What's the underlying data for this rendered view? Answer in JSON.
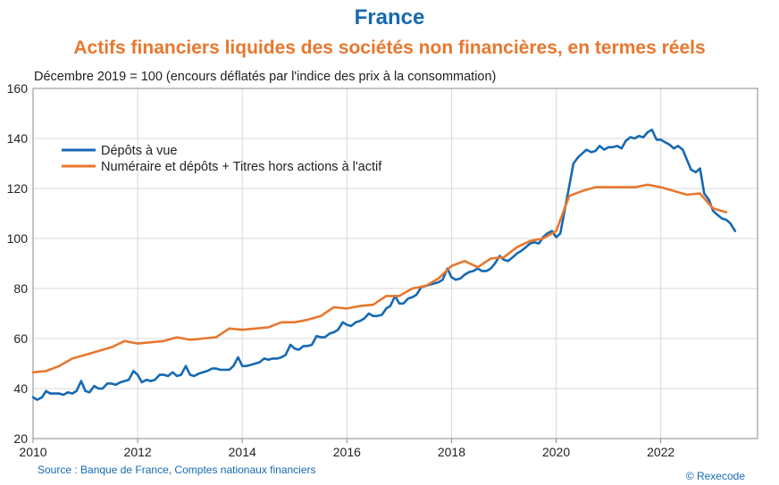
{
  "header": {
    "title": "France",
    "subtitle": "Actifs financiers liquides des sociétés non financières, en termes réels",
    "note": "Décembre 2019 = 100 (encours déflatés par l'indice des prix à la consommation)"
  },
  "footer": {
    "source": "Source : Banque de France, Comptes nationaux financiers",
    "copyright": "© Rexecode"
  },
  "colors": {
    "blue": "#1569b3",
    "orange": "#e8772e",
    "grid": "#d9d9d9",
    "axis": "#888888"
  },
  "chart_data": {
    "type": "line",
    "title": "Actifs financiers liquides des sociétés non financières, en termes réels",
    "ylabel": "Décembre 2019 = 100 (encours déflatés par l'indice des prix à la consommation)",
    "xlim": [
      2010,
      2023.85
    ],
    "ylim": [
      20,
      160
    ],
    "x_ticks": [
      2010,
      2012,
      2014,
      2016,
      2018,
      2020,
      2022
    ],
    "y_ticks": [
      20,
      40,
      60,
      80,
      100,
      120,
      140,
      160
    ],
    "grid": true,
    "legend_position": "top-left",
    "series": [
      {
        "name": "Dépôts à vue",
        "color": "#1569b3",
        "points": [
          [
            2010.0,
            36.5
          ],
          [
            2010.08,
            35.5
          ],
          [
            2010.17,
            36.5
          ],
          [
            2010.25,
            39
          ],
          [
            2010.33,
            38
          ],
          [
            2010.42,
            38
          ],
          [
            2010.5,
            38
          ],
          [
            2010.58,
            37.5
          ],
          [
            2010.67,
            38.5
          ],
          [
            2010.75,
            38
          ],
          [
            2010.83,
            39
          ],
          [
            2010.92,
            43
          ],
          [
            2011.0,
            39
          ],
          [
            2011.08,
            38.5
          ],
          [
            2011.17,
            41
          ],
          [
            2011.25,
            40
          ],
          [
            2011.33,
            40
          ],
          [
            2011.42,
            42
          ],
          [
            2011.5,
            42
          ],
          [
            2011.58,
            41.5
          ],
          [
            2011.67,
            42.5
          ],
          [
            2011.75,
            43
          ],
          [
            2011.83,
            43.5
          ],
          [
            2011.92,
            47
          ],
          [
            2012.0,
            45.5
          ],
          [
            2012.08,
            42.5
          ],
          [
            2012.17,
            43.5
          ],
          [
            2012.25,
            43
          ],
          [
            2012.33,
            43.5
          ],
          [
            2012.42,
            45.5
          ],
          [
            2012.5,
            45.5
          ],
          [
            2012.58,
            45
          ],
          [
            2012.67,
            46.5
          ],
          [
            2012.75,
            45
          ],
          [
            2012.83,
            45.5
          ],
          [
            2012.92,
            49
          ],
          [
            2013.0,
            45.5
          ],
          [
            2013.08,
            45
          ],
          [
            2013.17,
            46
          ],
          [
            2013.25,
            46.5
          ],
          [
            2013.33,
            47
          ],
          [
            2013.42,
            48
          ],
          [
            2013.5,
            48
          ],
          [
            2013.58,
            47.5
          ],
          [
            2013.67,
            47.5
          ],
          [
            2013.75,
            47.5
          ],
          [
            2013.83,
            49
          ],
          [
            2013.92,
            52.5
          ],
          [
            2014.0,
            49
          ],
          [
            2014.08,
            49
          ],
          [
            2014.17,
            49.5
          ],
          [
            2014.25,
            50
          ],
          [
            2014.33,
            50.5
          ],
          [
            2014.42,
            52
          ],
          [
            2014.5,
            51.5
          ],
          [
            2014.58,
            52
          ],
          [
            2014.67,
            52
          ],
          [
            2014.75,
            52.5
          ],
          [
            2014.83,
            53.5
          ],
          [
            2014.92,
            57.5
          ],
          [
            2015.0,
            56
          ],
          [
            2015.08,
            55.5
          ],
          [
            2015.17,
            57
          ],
          [
            2015.25,
            57
          ],
          [
            2015.33,
            57.5
          ],
          [
            2015.42,
            61
          ],
          [
            2015.5,
            60.5
          ],
          [
            2015.58,
            60.5
          ],
          [
            2015.67,
            62
          ],
          [
            2015.75,
            62.5
          ],
          [
            2015.83,
            63.5
          ],
          [
            2015.92,
            66.5
          ],
          [
            2016.0,
            65.5
          ],
          [
            2016.08,
            65
          ],
          [
            2016.17,
            66.5
          ],
          [
            2016.25,
            67
          ],
          [
            2016.33,
            68
          ],
          [
            2016.42,
            70
          ],
          [
            2016.5,
            69
          ],
          [
            2016.58,
            69
          ],
          [
            2016.67,
            69.5
          ],
          [
            2016.75,
            72
          ],
          [
            2016.83,
            73
          ],
          [
            2016.92,
            77
          ],
          [
            2017.0,
            74
          ],
          [
            2017.08,
            74
          ],
          [
            2017.17,
            76
          ],
          [
            2017.25,
            76.5
          ],
          [
            2017.33,
            77.5
          ],
          [
            2017.42,
            80.5
          ],
          [
            2017.5,
            81
          ],
          [
            2017.58,
            81.5
          ],
          [
            2017.67,
            82
          ],
          [
            2017.75,
            82.5
          ],
          [
            2017.83,
            83.5
          ],
          [
            2017.92,
            88
          ],
          [
            2018.0,
            84.5
          ],
          [
            2018.08,
            83.5
          ],
          [
            2018.17,
            84
          ],
          [
            2018.25,
            85.5
          ],
          [
            2018.33,
            86.5
          ],
          [
            2018.42,
            87
          ],
          [
            2018.5,
            88
          ],
          [
            2018.58,
            87
          ],
          [
            2018.67,
            87
          ],
          [
            2018.75,
            88
          ],
          [
            2018.83,
            90
          ],
          [
            2018.92,
            93
          ],
          [
            2019.0,
            91.5
          ],
          [
            2019.08,
            91
          ],
          [
            2019.17,
            92.5
          ],
          [
            2019.25,
            94
          ],
          [
            2019.33,
            95
          ],
          [
            2019.42,
            96.5
          ],
          [
            2019.5,
            98
          ],
          [
            2019.58,
            98.5
          ],
          [
            2019.67,
            98
          ],
          [
            2019.75,
            100.5
          ],
          [
            2019.83,
            102
          ],
          [
            2019.92,
            103
          ],
          [
            2020.0,
            100.5
          ],
          [
            2020.08,
            102
          ],
          [
            2020.17,
            112
          ],
          [
            2020.25,
            121
          ],
          [
            2020.33,
            130
          ],
          [
            2020.42,
            132.5
          ],
          [
            2020.5,
            134
          ],
          [
            2020.58,
            135.5
          ],
          [
            2020.67,
            134.5
          ],
          [
            2020.75,
            135
          ],
          [
            2020.83,
            137
          ],
          [
            2020.92,
            135.5
          ],
          [
            2021.0,
            136.5
          ],
          [
            2021.08,
            136.5
          ],
          [
            2021.17,
            137
          ],
          [
            2021.25,
            136
          ],
          [
            2021.33,
            139
          ],
          [
            2021.42,
            140.5
          ],
          [
            2021.5,
            140
          ],
          [
            2021.58,
            141
          ],
          [
            2021.67,
            140.5
          ],
          [
            2021.75,
            142.5
          ],
          [
            2021.83,
            143.5
          ],
          [
            2021.92,
            139.5
          ],
          [
            2022.0,
            139.5
          ],
          [
            2022.08,
            138.5
          ],
          [
            2022.17,
            137.5
          ],
          [
            2022.25,
            136
          ],
          [
            2022.33,
            137
          ],
          [
            2022.42,
            135.5
          ],
          [
            2022.5,
            131.5
          ],
          [
            2022.58,
            127.5
          ],
          [
            2022.67,
            126.5
          ],
          [
            2022.75,
            128
          ],
          [
            2022.83,
            118
          ],
          [
            2022.92,
            115.5
          ],
          [
            2023.0,
            111
          ],
          [
            2023.08,
            109.5
          ],
          [
            2023.17,
            108
          ],
          [
            2023.25,
            107.5
          ],
          [
            2023.33,
            106
          ],
          [
            2023.42,
            103
          ]
        ]
      },
      {
        "name": "Numéraire et dépôts + Titres hors actions à l'actif",
        "color": "#e8772e",
        "points": [
          [
            2010.0,
            46.5
          ],
          [
            2010.25,
            47
          ],
          [
            2010.5,
            49
          ],
          [
            2010.75,
            52
          ],
          [
            2011.0,
            53.5
          ],
          [
            2011.25,
            55
          ],
          [
            2011.5,
            56.5
          ],
          [
            2011.75,
            59
          ],
          [
            2012.0,
            58
          ],
          [
            2012.25,
            58.5
          ],
          [
            2012.5,
            59
          ],
          [
            2012.75,
            60.5
          ],
          [
            2013.0,
            59.5
          ],
          [
            2013.25,
            60
          ],
          [
            2013.5,
            60.5
          ],
          [
            2013.75,
            64
          ],
          [
            2014.0,
            63.5
          ],
          [
            2014.25,
            64
          ],
          [
            2014.5,
            64.5
          ],
          [
            2014.75,
            66.5
          ],
          [
            2015.0,
            66.5
          ],
          [
            2015.25,
            67.5
          ],
          [
            2015.5,
            69
          ],
          [
            2015.75,
            72.5
          ],
          [
            2016.0,
            72
          ],
          [
            2016.25,
            73
          ],
          [
            2016.5,
            73.5
          ],
          [
            2016.75,
            77
          ],
          [
            2017.0,
            77
          ],
          [
            2017.25,
            80
          ],
          [
            2017.5,
            81
          ],
          [
            2017.75,
            84
          ],
          [
            2018.0,
            89
          ],
          [
            2018.25,
            91
          ],
          [
            2018.5,
            88.5
          ],
          [
            2018.75,
            92
          ],
          [
            2019.0,
            92.5
          ],
          [
            2019.25,
            96.5
          ],
          [
            2019.5,
            99
          ],
          [
            2019.75,
            100
          ],
          [
            2020.0,
            103
          ],
          [
            2020.25,
            117
          ],
          [
            2020.5,
            119
          ],
          [
            2020.75,
            120.5
          ],
          [
            2021.0,
            120.5
          ],
          [
            2021.25,
            120.5
          ],
          [
            2021.5,
            120.5
          ],
          [
            2021.75,
            121.5
          ],
          [
            2022.0,
            120.5
          ],
          [
            2022.25,
            119
          ],
          [
            2022.5,
            117.5
          ],
          [
            2022.75,
            118
          ],
          [
            2023.0,
            112
          ],
          [
            2023.25,
            110.5
          ]
        ]
      }
    ]
  }
}
